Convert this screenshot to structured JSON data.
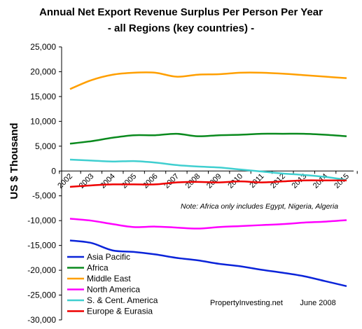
{
  "chart_data": {
    "type": "line",
    "title": "Annual Net Export Revenue Surplus Per Person Per Year",
    "subtitle": "-  all Regions (key countries) -",
    "ylabel": "US $ Thousand",
    "xlabel": "",
    "ylim": [
      -30000,
      25000
    ],
    "yticks": [
      25000,
      20000,
      15000,
      10000,
      5000,
      0,
      -5000,
      -10000,
      -15000,
      -20000,
      -25000,
      -30000
    ],
    "ytick_labels": [
      "25,000",
      "20,000",
      "15,000",
      "10,000",
      "5,000",
      "0",
      "-5,000",
      "-10,000",
      "-15,000",
      "-20,000",
      "-25,000",
      "-30,000"
    ],
    "x": [
      "2002",
      "2003",
      "2004",
      "2005",
      "2006",
      "2007",
      "2008",
      "2009",
      "2010",
      "2011",
      "2012",
      "2013",
      "2014",
      "2015"
    ],
    "grid": false,
    "legend_position": "bottom-left",
    "note": "Note: Africa only includes Egypt, Nigeria, Algeria",
    "credit": "PropertyInvesting.net        June 2008",
    "series": [
      {
        "name": "Asia Pacific",
        "color": "#0b24d9",
        "values": [
          -14000,
          -14500,
          -16000,
          -16300,
          -16800,
          -17500,
          -18000,
          -18700,
          -19200,
          -19900,
          -20500,
          -21200,
          -22200,
          -23200
        ]
      },
      {
        "name": "Africa",
        "color": "#0a8a1e",
        "values": [
          5500,
          6000,
          6700,
          7200,
          7200,
          7500,
          7000,
          7200,
          7300,
          7500,
          7500,
          7500,
          7300,
          7000
        ]
      },
      {
        "name": "Middle East",
        "color": "#ff9f00",
        "values": [
          16500,
          18300,
          19400,
          19800,
          19800,
          19000,
          19400,
          19500,
          19800,
          19800,
          19600,
          19300,
          19000,
          18700
        ]
      },
      {
        "name": "North America",
        "color": "#ff00ff",
        "values": [
          -9600,
          -10000,
          -10700,
          -11300,
          -11200,
          -11400,
          -11600,
          -11300,
          -11100,
          -10900,
          -10700,
          -10400,
          -10200,
          -9900
        ]
      },
      {
        "name": "S. & Cent. America",
        "color": "#40cfd0",
        "values": [
          2300,
          2100,
          1900,
          2000,
          1700,
          1200,
          900,
          700,
          300,
          -100,
          -500,
          -800,
          -1200,
          -1800
        ]
      },
      {
        "name": "Europe & Eurasia",
        "color": "#ee0000",
        "values": [
          -3200,
          -2900,
          -2700,
          -2700,
          -2700,
          -2300,
          -2200,
          -2300,
          -2100,
          -2300,
          -2100,
          -1900,
          -1900,
          -1900
        ]
      }
    ]
  }
}
